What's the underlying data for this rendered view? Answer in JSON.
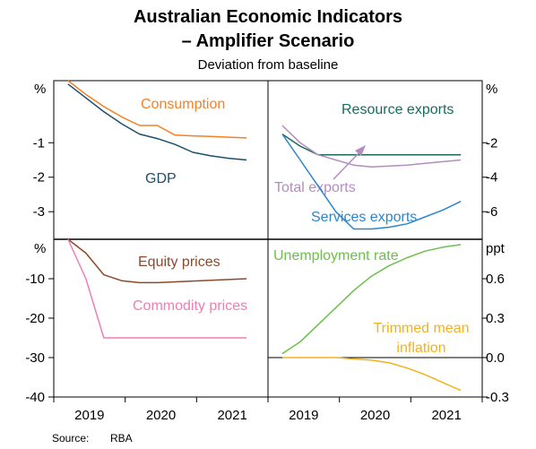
{
  "title_line1": "Australian Economic Indicators",
  "title_line2": "– Amplifier Scenario",
  "subtitle": "Deviation from baseline",
  "source_label": "Source:",
  "source_value": "RBA",
  "x_ticks": [
    "2019",
    "2020",
    "2021"
  ],
  "chart_data": [
    {
      "type": "line",
      "panel": "top-left",
      "unit": "%",
      "ylim": [
        -3.8,
        0.8
      ],
      "yticks": [
        "-1",
        "-2",
        "-3"
      ],
      "yticks_values": [
        -1,
        -2,
        -3
      ],
      "x": [
        "2019-Q2",
        "2019-Q3",
        "2019-Q4",
        "2020-Q1",
        "2020-Q2",
        "2020-Q3",
        "2020-Q4",
        "2021-Q1",
        "2021-Q2",
        "2021-Q3",
        "2021-Q4"
      ],
      "series": [
        {
          "name": "Consumption",
          "color": "#f58025",
          "values": [
            0.8,
            0.4,
            0.05,
            -0.25,
            -0.5,
            -0.5,
            -0.78,
            -0.8,
            -0.82,
            -0.84,
            -0.86
          ]
        },
        {
          "name": "GDP",
          "color": "#1c4f6a",
          "values": [
            0.7,
            0.3,
            -0.1,
            -0.45,
            -0.75,
            -0.88,
            -1.05,
            -1.28,
            -1.38,
            -1.45,
            -1.5
          ]
        }
      ]
    },
    {
      "type": "line",
      "panel": "top-right",
      "unit": "%",
      "ylim": [
        -7.6,
        1.6
      ],
      "yticks": [
        "-2",
        "-4",
        "-6"
      ],
      "yticks_values": [
        -2,
        -4,
        -6
      ],
      "x": [
        "2019-Q2",
        "2019-Q3",
        "2019-Q4",
        "2020-Q1",
        "2020-Q2",
        "2020-Q3",
        "2020-Q4",
        "2021-Q1",
        "2021-Q2",
        "2021-Q3",
        "2021-Q4"
      ],
      "series": [
        {
          "name": "Resource exports",
          "color": "#1b6a5c",
          "values": [
            -1.5,
            -2.2,
            -2.7,
            -2.7,
            -2.7,
            -2.7,
            -2.7,
            -2.7,
            -2.7,
            -2.7,
            -2.7
          ]
        },
        {
          "name": "Total exports",
          "color": "#b48cc0",
          "values": [
            -1.0,
            -2.0,
            -2.7,
            -3.0,
            -3.3,
            -3.4,
            -3.35,
            -3.3,
            -3.2,
            -3.1,
            -3.0
          ]
        },
        {
          "name": "Services exports",
          "color": "#2a86cf",
          "values": [
            -1.5,
            -3.0,
            -4.5,
            -6.0,
            -7.0,
            -7.0,
            -6.9,
            -6.7,
            -6.3,
            -5.9,
            -5.4
          ]
        }
      ]
    },
    {
      "type": "line",
      "panel": "bottom-left",
      "unit": "%",
      "ylim": [
        -40,
        0
      ],
      "yticks": [
        "-10",
        "-20",
        "-30",
        "-40"
      ],
      "yticks_values": [
        -10,
        -20,
        -30,
        -40
      ],
      "x": [
        "2019-Q2",
        "2019-Q3",
        "2019-Q4",
        "2020-Q1",
        "2020-Q2",
        "2020-Q3",
        "2020-Q4",
        "2021-Q1",
        "2021-Q2",
        "2021-Q3",
        "2021-Q4"
      ],
      "series": [
        {
          "name": "Equity prices",
          "color": "#8b4a2b",
          "values": [
            0,
            -3.5,
            -9,
            -10.5,
            -11,
            -11,
            -10.8,
            -10.6,
            -10.4,
            -10.2,
            -10
          ]
        },
        {
          "name": "Commodity prices",
          "color": "#f07db5",
          "values": [
            0,
            -10,
            -25,
            -25,
            -25,
            -25,
            -25,
            -25,
            -25,
            -25,
            -25
          ]
        }
      ]
    },
    {
      "type": "line",
      "panel": "bottom-right",
      "unit": "ppt",
      "ylim": [
        -0.3,
        0.9
      ],
      "yticks": [
        "0.6",
        "0.3",
        "0.0",
        "-0.3"
      ],
      "yticks_values": [
        0.6,
        0.3,
        0.0,
        -0.3
      ],
      "x": [
        "2019-Q2",
        "2019-Q3",
        "2019-Q4",
        "2020-Q1",
        "2020-Q2",
        "2020-Q3",
        "2020-Q4",
        "2021-Q1",
        "2021-Q2",
        "2021-Q3",
        "2021-Q4"
      ],
      "series": [
        {
          "name": "Unemployment rate",
          "color": "#6cc04a",
          "values": [
            0.03,
            0.12,
            0.25,
            0.38,
            0.51,
            0.62,
            0.7,
            0.76,
            0.81,
            0.84,
            0.86
          ]
        },
        {
          "name": "Trimmed mean inflation",
          "color": "#f3b21d",
          "values": [
            0.0,
            0.0,
            0.0,
            0.0,
            -0.01,
            -0.02,
            -0.04,
            -0.08,
            -0.13,
            -0.19,
            -0.25
          ]
        }
      ]
    }
  ]
}
